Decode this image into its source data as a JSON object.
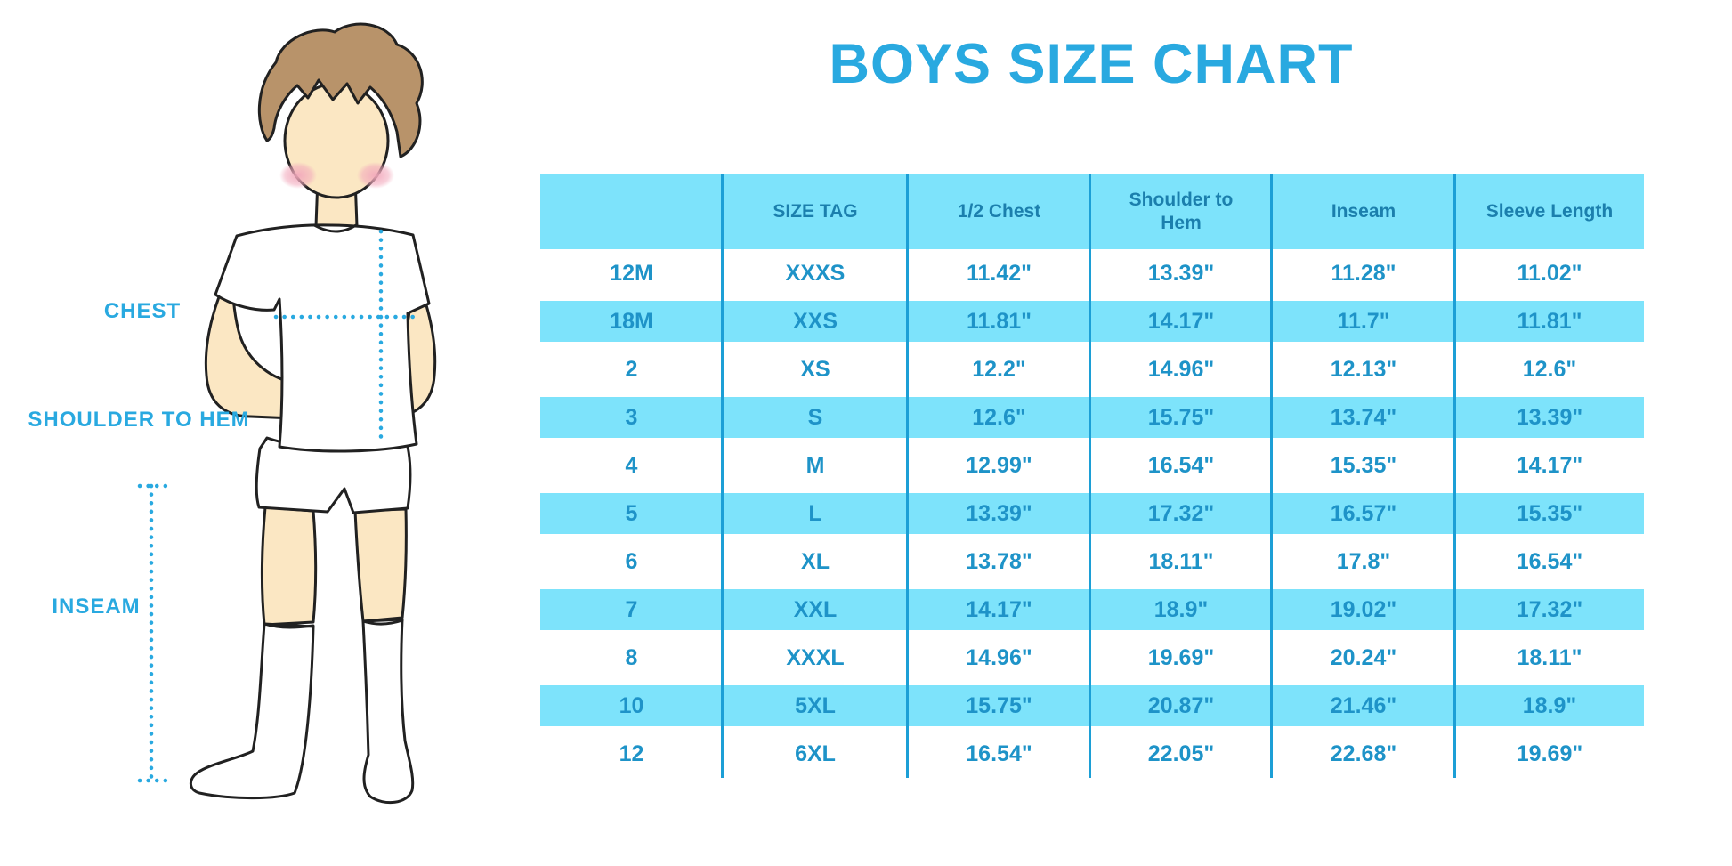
{
  "title": "BOYS SIZE CHART",
  "figure": {
    "labels": {
      "chest": "CHEST",
      "shoulder": "SHOULDER TO HEM",
      "inseam": "INSEAM"
    }
  },
  "chart_data": {
    "type": "table",
    "title": "BOYS SIZE CHART",
    "columns": [
      "",
      "SIZE TAG",
      "1/2 Chest",
      "Shoulder to Hem",
      "Inseam",
      "Sleeve Length"
    ],
    "rows": [
      [
        "12M",
        "XXXS",
        "11.42\"",
        "13.39\"",
        "11.28\"",
        "11.02\""
      ],
      [
        "18M",
        "XXS",
        "11.81\"",
        "14.17\"",
        "11.7\"",
        "11.81\""
      ],
      [
        "2",
        "XS",
        "12.2\"",
        "14.96\"",
        "12.13\"",
        "12.6\""
      ],
      [
        "3",
        "S",
        "12.6\"",
        "15.75\"",
        "13.74\"",
        "13.39\""
      ],
      [
        "4",
        "M",
        "12.99\"",
        "16.54\"",
        "15.35\"",
        "14.17\""
      ],
      [
        "5",
        "L",
        "13.39\"",
        "17.32\"",
        "16.57\"",
        "15.35\""
      ],
      [
        "6",
        "XL",
        "13.78\"",
        "18.11\"",
        "17.8\"",
        "16.54\""
      ],
      [
        "7",
        "XXL",
        "14.17\"",
        "18.9\"",
        "19.02\"",
        "17.32\""
      ],
      [
        "8",
        "XXXL",
        "14.96\"",
        "19.69\"",
        "20.24\"",
        "18.11\""
      ],
      [
        "10",
        "5XL",
        "15.75\"",
        "20.87\"",
        "21.46\"",
        "18.9\""
      ],
      [
        "12",
        "6XL",
        "16.54\"",
        "22.05\"",
        "22.68\"",
        "19.69\""
      ]
    ],
    "banded_row_indices": [
      1,
      3,
      5,
      7,
      9
    ],
    "measurement_labels": [
      "CHEST",
      "SHOULDER TO HEM",
      "INSEAM"
    ],
    "units": "inches"
  },
  "colors": {
    "accent": "#29A9E0",
    "band": "#7DE3FB",
    "divider": "#1C9FD6",
    "header_text": "#1B7FAD",
    "data_text": "#1E93C8",
    "skin": "#FBE7C3",
    "hair": "#B8936A",
    "outline": "#212121"
  }
}
